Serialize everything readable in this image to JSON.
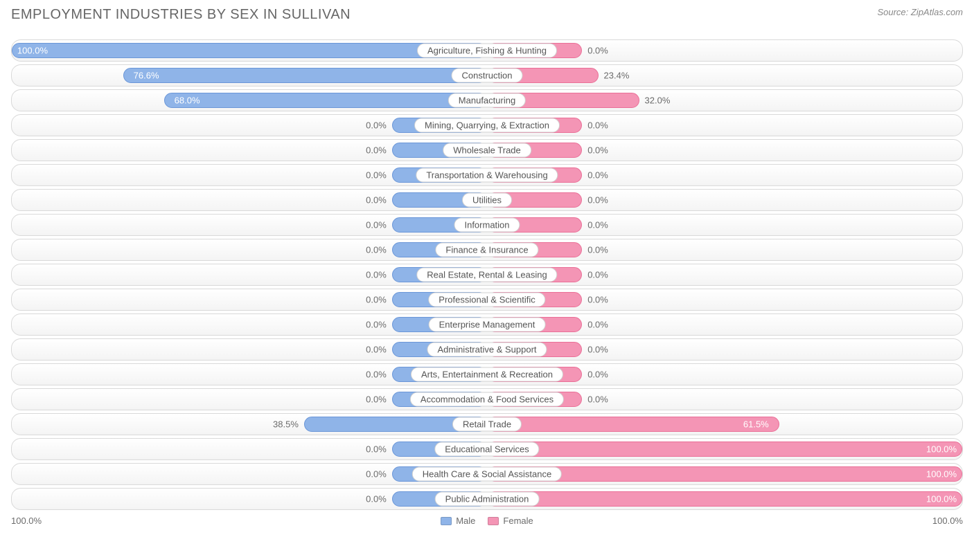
{
  "header": {
    "title": "EMPLOYMENT INDUSTRIES BY SEX IN SULLIVAN",
    "source": "Source: ZipAtlas.com"
  },
  "chart": {
    "type": "diverging-bar",
    "min_bar_pct": 20,
    "colors": {
      "male_fill": "#8fb4e8",
      "male_border": "#6a96d8",
      "female_fill": "#f495b5",
      "female_border": "#ea6f97",
      "row_border": "#d9d9d9",
      "text": "#6b6b6b",
      "text_inside": "#ffffff",
      "label_bg": "#ffffff"
    },
    "rows": [
      {
        "label": "Agriculture, Fishing & Hunting",
        "male": 100.0,
        "female": 0.0
      },
      {
        "label": "Construction",
        "male": 76.6,
        "female": 23.4
      },
      {
        "label": "Manufacturing",
        "male": 68.0,
        "female": 32.0
      },
      {
        "label": "Mining, Quarrying, & Extraction",
        "male": 0.0,
        "female": 0.0
      },
      {
        "label": "Wholesale Trade",
        "male": 0.0,
        "female": 0.0
      },
      {
        "label": "Transportation & Warehousing",
        "male": 0.0,
        "female": 0.0
      },
      {
        "label": "Utilities",
        "male": 0.0,
        "female": 0.0
      },
      {
        "label": "Information",
        "male": 0.0,
        "female": 0.0
      },
      {
        "label": "Finance & Insurance",
        "male": 0.0,
        "female": 0.0
      },
      {
        "label": "Real Estate, Rental & Leasing",
        "male": 0.0,
        "female": 0.0
      },
      {
        "label": "Professional & Scientific",
        "male": 0.0,
        "female": 0.0
      },
      {
        "label": "Enterprise Management",
        "male": 0.0,
        "female": 0.0
      },
      {
        "label": "Administrative & Support",
        "male": 0.0,
        "female": 0.0
      },
      {
        "label": "Arts, Entertainment & Recreation",
        "male": 0.0,
        "female": 0.0
      },
      {
        "label": "Accommodation & Food Services",
        "male": 0.0,
        "female": 0.0
      },
      {
        "label": "Retail Trade",
        "male": 38.5,
        "female": 61.5
      },
      {
        "label": "Educational Services",
        "male": 0.0,
        "female": 100.0
      },
      {
        "label": "Health Care & Social Assistance",
        "male": 0.0,
        "female": 100.0
      },
      {
        "label": "Public Administration",
        "male": 0.0,
        "female": 100.0
      }
    ]
  },
  "footer": {
    "axis_left": "100.0%",
    "axis_right": "100.0%",
    "legend": {
      "male": "Male",
      "female": "Female"
    }
  }
}
